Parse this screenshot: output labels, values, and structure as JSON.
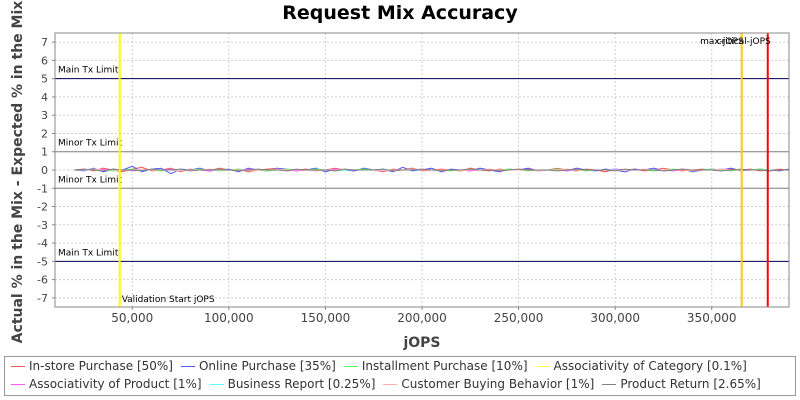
{
  "chart_data": {
    "type": "line",
    "title": "Request Mix Accuracy",
    "xlabel": "jOPS",
    "ylabel": "Actual % in the Mix - Expected % in the Mix",
    "xlim": [
      10000,
      390000
    ],
    "ylim": [
      -7.5,
      7.5
    ],
    "x_ticks": [
      50000,
      100000,
      150000,
      200000,
      250000,
      300000,
      350000
    ],
    "x_tick_labels": [
      "50,000",
      "100,000",
      "150,000",
      "200,000",
      "250,000",
      "300,000",
      "350,000"
    ],
    "y_ticks": [
      7,
      6,
      5,
      4,
      3,
      2,
      1,
      0,
      -1,
      -2,
      -3,
      -4,
      -5,
      -6,
      -7
    ],
    "y_tick_labels": [
      "7",
      "6",
      "5",
      "4",
      "3",
      "2",
      "1",
      "0",
      "-1",
      "-2",
      "-3",
      "-4",
      "-5",
      "-6",
      "-7"
    ],
    "grid": true,
    "legend_position": "bottom",
    "reference_lines": [
      {
        "label": "Main Tx Limit",
        "y": 5,
        "color": "#000055"
      },
      {
        "label": "Minor Tx Limit",
        "y": 1,
        "color": "#808080"
      },
      {
        "label": "Minor Tx Limit",
        "y": -1,
        "color": "#808080"
      },
      {
        "label": "Main Tx Limit",
        "y": -5,
        "color": "#000055"
      }
    ],
    "vertical_markers": [
      {
        "label": "Validation Start jOPS",
        "x": 43500,
        "color": "#ffff00"
      },
      {
        "label": "max-jOPS",
        "x": 365500,
        "color": "#ffcc00"
      },
      {
        "label": "critical-jOPS",
        "x": 379000,
        "color": "#ff0000"
      }
    ],
    "x": [
      20000,
      25000,
      30000,
      35000,
      40000,
      45000,
      50000,
      55000,
      60000,
      65000,
      70000,
      75000,
      80000,
      85000,
      90000,
      95000,
      100000,
      105000,
      110000,
      115000,
      120000,
      125000,
      130000,
      135000,
      140000,
      145000,
      150000,
      155000,
      160000,
      165000,
      170000,
      175000,
      180000,
      185000,
      190000,
      195000,
      200000,
      205000,
      210000,
      215000,
      220000,
      225000,
      230000,
      235000,
      240000,
      245000,
      250000,
      255000,
      260000,
      265000,
      270000,
      275000,
      280000,
      285000,
      290000,
      295000,
      300000,
      305000,
      310000,
      315000,
      320000,
      325000,
      330000,
      335000,
      340000,
      345000,
      350000,
      355000,
      360000,
      365000,
      370000,
      375000,
      380000,
      385000,
      390000
    ],
    "series": [
      {
        "name": "In-store Purchase [50%]",
        "color": "#ff5555",
        "values": [
          0.0,
          0.05,
          -0.05,
          0.1,
          0.0,
          -0.1,
          0.05,
          0.15,
          -0.05,
          0.0,
          0.1,
          -0.1,
          0.05,
          0.0,
          -0.05,
          0.1,
          0.0,
          0.05,
          -0.1,
          0.0,
          0.05,
          0.1,
          -0.05,
          0.0,
          0.05,
          -0.05,
          0.0,
          0.1,
          0.0,
          -0.05,
          0.05,
          0.0,
          -0.1,
          0.05,
          0.0,
          0.1,
          -0.05,
          0.0,
          0.05,
          0.0,
          -0.05,
          0.1,
          0.0,
          -0.05,
          0.05,
          0.0,
          0.0,
          0.05,
          -0.05,
          0.0,
          0.1,
          0.0,
          -0.05,
          0.05,
          0.0,
          -0.1,
          0.05,
          0.0,
          0.05,
          -0.05,
          0.0,
          0.1,
          0.0,
          -0.05,
          0.0,
          0.05,
          0.0,
          -0.05,
          0.05,
          0.0,
          0.05,
          -0.05,
          0.0,
          0.05,
          0.0
        ]
      },
      {
        "name": "Online Purchase [35%]",
        "color": "#5555ff",
        "values": [
          0.0,
          -0.05,
          0.1,
          -0.1,
          0.05,
          0.0,
          0.2,
          -0.1,
          0.05,
          0.1,
          -0.2,
          0.05,
          0.0,
          0.1,
          -0.05,
          0.0,
          0.05,
          -0.1,
          0.1,
          0.0,
          -0.05,
          0.1,
          0.05,
          -0.05,
          0.0,
          0.1,
          -0.1,
          0.05,
          0.0,
          -0.05,
          0.1,
          0.0,
          0.05,
          -0.1,
          0.15,
          -0.05,
          0.0,
          0.1,
          -0.1,
          0.05,
          0.0,
          -0.05,
          0.1,
          0.0,
          -0.1,
          0.05,
          0.0,
          0.1,
          -0.05,
          0.0,
          0.05,
          -0.05,
          0.1,
          0.0,
          -0.05,
          0.05,
          0.0,
          -0.1,
          0.05,
          0.0,
          0.1,
          -0.05,
          0.0,
          0.05,
          -0.1,
          0.0,
          0.05,
          0.0,
          0.1,
          -0.05,
          0.0,
          0.05,
          0.0,
          -0.05,
          0.05
        ]
      },
      {
        "name": "Installment Purchase [10%]",
        "color": "#55ff55",
        "values": [
          0.0,
          0.0,
          0.05,
          0.0,
          -0.05,
          0.0,
          0.05,
          0.0,
          0.0,
          -0.05,
          0.05,
          0.0,
          0.0,
          0.05,
          0.0,
          -0.05,
          0.0,
          0.05,
          0.0,
          0.0,
          -0.05,
          0.0,
          0.05,
          0.0,
          0.0,
          0.05,
          0.0,
          -0.05,
          0.0,
          0.0,
          0.05,
          0.0,
          0.0,
          -0.05,
          0.0,
          0.05,
          0.0,
          0.0,
          0.0,
          -0.05,
          0.0,
          0.05,
          0.0,
          0.0,
          0.0,
          0.05,
          0.0,
          -0.05,
          0.0,
          0.0,
          0.05,
          0.0,
          0.0,
          -0.05,
          0.0,
          0.0,
          0.05,
          0.0,
          0.0,
          0.0,
          -0.05,
          0.0,
          0.05,
          0.0,
          0.0,
          0.0,
          0.05,
          0.0,
          -0.05,
          0.0,
          0.0,
          0.05,
          0.0,
          0.0,
          0.0
        ]
      },
      {
        "name": "Associativity of Category [0.1%]",
        "color": "#ffff55",
        "values": [
          0.0,
          0.0,
          0.0,
          0.0,
          0.0,
          0.0,
          0.0,
          0.0,
          0.0,
          0.0,
          0.0,
          0.0,
          0.0,
          0.0,
          0.0,
          0.0,
          0.0,
          0.0,
          0.0,
          0.0,
          0.0,
          0.0,
          0.0,
          0.0,
          0.0,
          0.0,
          0.0,
          0.0,
          0.0,
          0.0,
          0.0,
          0.0,
          0.0,
          0.0,
          0.0,
          0.0,
          0.0,
          0.0,
          0.0,
          0.0,
          0.0,
          0.0,
          0.0,
          0.0,
          0.0,
          0.0,
          0.0,
          0.0,
          0.0,
          0.0,
          0.0,
          0.0,
          0.0,
          0.0,
          0.0,
          0.0,
          0.0,
          0.0,
          0.0,
          0.0,
          0.0,
          0.0,
          0.0,
          0.0,
          0.0,
          0.0,
          0.0,
          0.0,
          0.0,
          0.0,
          0.0,
          0.0,
          0.0,
          0.0,
          0.0
        ]
      },
      {
        "name": "Associativity of Product [1%]",
        "color": "#ff55ff",
        "values": [
          0.0,
          0.0,
          0.0,
          0.05,
          0.0,
          0.0,
          -0.05,
          0.0,
          0.0,
          0.0,
          0.05,
          0.0,
          0.0,
          0.0,
          -0.05,
          0.0,
          0.0,
          0.0,
          0.05,
          0.0,
          0.0,
          0.0,
          0.0,
          -0.05,
          0.0,
          0.0,
          0.0,
          0.05,
          0.0,
          0.0,
          0.0,
          0.0,
          -0.05,
          0.0,
          0.0,
          0.0,
          0.05,
          0.0,
          0.0,
          0.0,
          0.0,
          -0.05,
          0.0,
          0.0,
          0.0,
          0.0,
          0.05,
          0.0,
          0.0,
          0.0,
          0.0,
          -0.05,
          0.0,
          0.0,
          0.0,
          0.0,
          0.05,
          0.0,
          0.0,
          0.0,
          0.0,
          0.0,
          -0.05,
          0.0,
          0.0,
          0.0,
          0.0,
          0.05,
          0.0,
          0.0,
          0.0,
          0.0,
          -0.05,
          0.0,
          0.0
        ]
      },
      {
        "name": "Business Report [0.25%]",
        "color": "#55ffff",
        "values": [
          0.0,
          0.0,
          0.0,
          0.0,
          0.0,
          0.0,
          0.0,
          0.0,
          0.0,
          0.0,
          0.0,
          0.0,
          0.0,
          0.0,
          0.0,
          0.0,
          0.0,
          0.0,
          0.0,
          0.0,
          0.0,
          0.0,
          0.0,
          0.0,
          0.0,
          0.0,
          0.0,
          0.0,
          0.0,
          0.0,
          0.0,
          0.0,
          0.0,
          0.0,
          0.0,
          0.0,
          0.0,
          0.0,
          0.0,
          0.0,
          0.0,
          0.0,
          0.0,
          0.0,
          0.0,
          0.0,
          0.0,
          0.0,
          0.0,
          0.0,
          0.0,
          0.0,
          0.0,
          0.0,
          0.0,
          0.0,
          0.0,
          0.0,
          0.0,
          0.0,
          0.0,
          0.0,
          0.0,
          0.0,
          0.0,
          0.0,
          0.0,
          0.0,
          0.0,
          0.0,
          0.0,
          0.0,
          0.0,
          0.0,
          0.0
        ]
      },
      {
        "name": "Customer Buying Behavior [1%]",
        "color": "#ffafaf",
        "values": [
          0.0,
          0.0,
          0.05,
          0.0,
          0.0,
          -0.05,
          0.0,
          0.05,
          0.0,
          0.0,
          0.0,
          -0.05,
          0.0,
          0.0,
          0.05,
          0.0,
          0.0,
          0.0,
          -0.05,
          0.0,
          0.0,
          0.05,
          0.0,
          0.0,
          0.0,
          -0.05,
          0.0,
          0.0,
          0.05,
          0.0,
          0.0,
          0.0,
          -0.05,
          0.0,
          0.0,
          0.05,
          0.0,
          0.0,
          0.0,
          0.0,
          -0.05,
          0.0,
          0.0,
          0.05,
          0.0,
          0.0,
          0.0,
          0.0,
          -0.05,
          0.0,
          0.0,
          0.05,
          0.0,
          0.0,
          0.0,
          0.0,
          -0.05,
          0.0,
          0.0,
          0.05,
          0.0,
          0.0,
          0.0,
          0.0,
          -0.05,
          0.0,
          0.0,
          0.05,
          0.0,
          0.0,
          0.0,
          0.0,
          -0.05,
          0.0,
          0.0
        ]
      },
      {
        "name": "Product Return [2.65%]",
        "color": "#808080",
        "values": [
          0.0,
          0.05,
          0.0,
          -0.05,
          0.05,
          0.0,
          0.0,
          -0.05,
          0.05,
          0.0,
          0.0,
          0.05,
          -0.05,
          0.0,
          0.0,
          0.05,
          0.0,
          -0.05,
          0.0,
          0.05,
          0.0,
          0.0,
          -0.05,
          0.05,
          0.0,
          0.0,
          0.0,
          -0.05,
          0.05,
          0.0,
          0.0,
          0.0,
          0.05,
          -0.05,
          0.0,
          0.0,
          0.05,
          0.0,
          -0.05,
          0.0,
          0.0,
          0.05,
          0.0,
          0.0,
          -0.05,
          0.0,
          0.05,
          0.0,
          0.0,
          0.0,
          -0.05,
          0.0,
          0.05,
          0.0,
          0.0,
          0.0,
          -0.05,
          0.05,
          0.0,
          0.0,
          0.0,
          -0.05,
          0.0,
          0.05,
          0.0,
          0.0,
          0.0,
          -0.05,
          0.0,
          0.05,
          0.0,
          0.0,
          -0.05,
          0.0,
          0.0
        ]
      }
    ]
  }
}
